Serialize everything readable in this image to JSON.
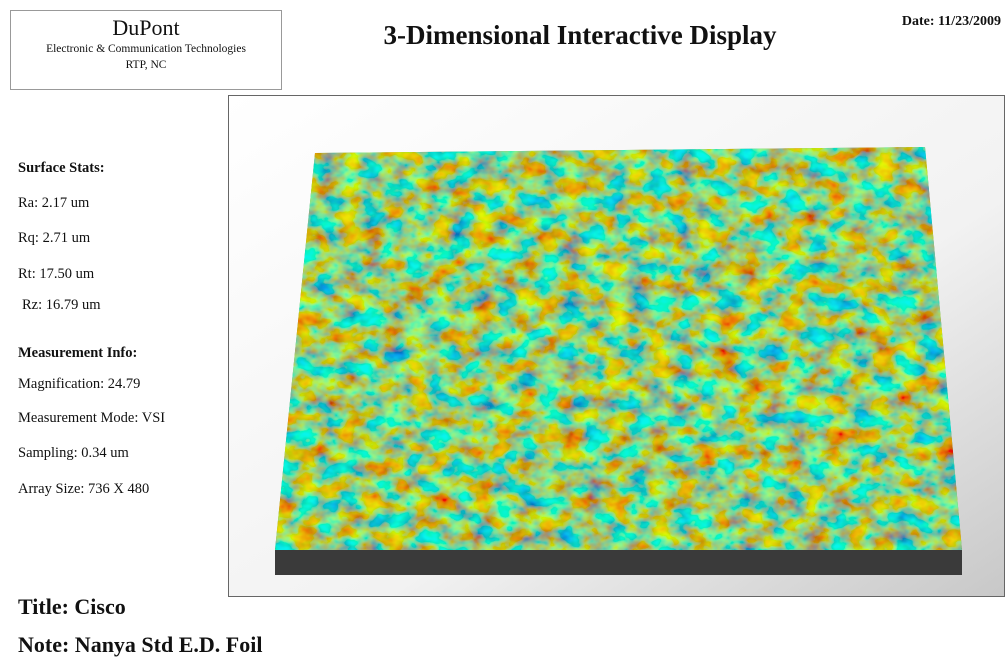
{
  "header": {
    "company": "DuPont",
    "division": "Electronic & Communication Technologies",
    "location": "RTP, NC",
    "title": "3-Dimensional Interactive Display",
    "date": "Date: 11/23/2009"
  },
  "surface_stats": {
    "heading": "Surface Stats:",
    "items": [
      "Ra: 2.17 um",
      "Rq: 2.71 um",
      "Rt: 17.50 um",
      "Rz: 16.79 um"
    ]
  },
  "measurement_info": {
    "heading": "Measurement Info:",
    "items": [
      "Magnification: 24.79",
      "Measurement Mode: VSI",
      "Sampling: 0.34 um",
      "Array Size: 736 X 480"
    ]
  },
  "footer": {
    "title": "Title: Cisco",
    "note": "Note: Nanya Std E.D. Foil"
  }
}
